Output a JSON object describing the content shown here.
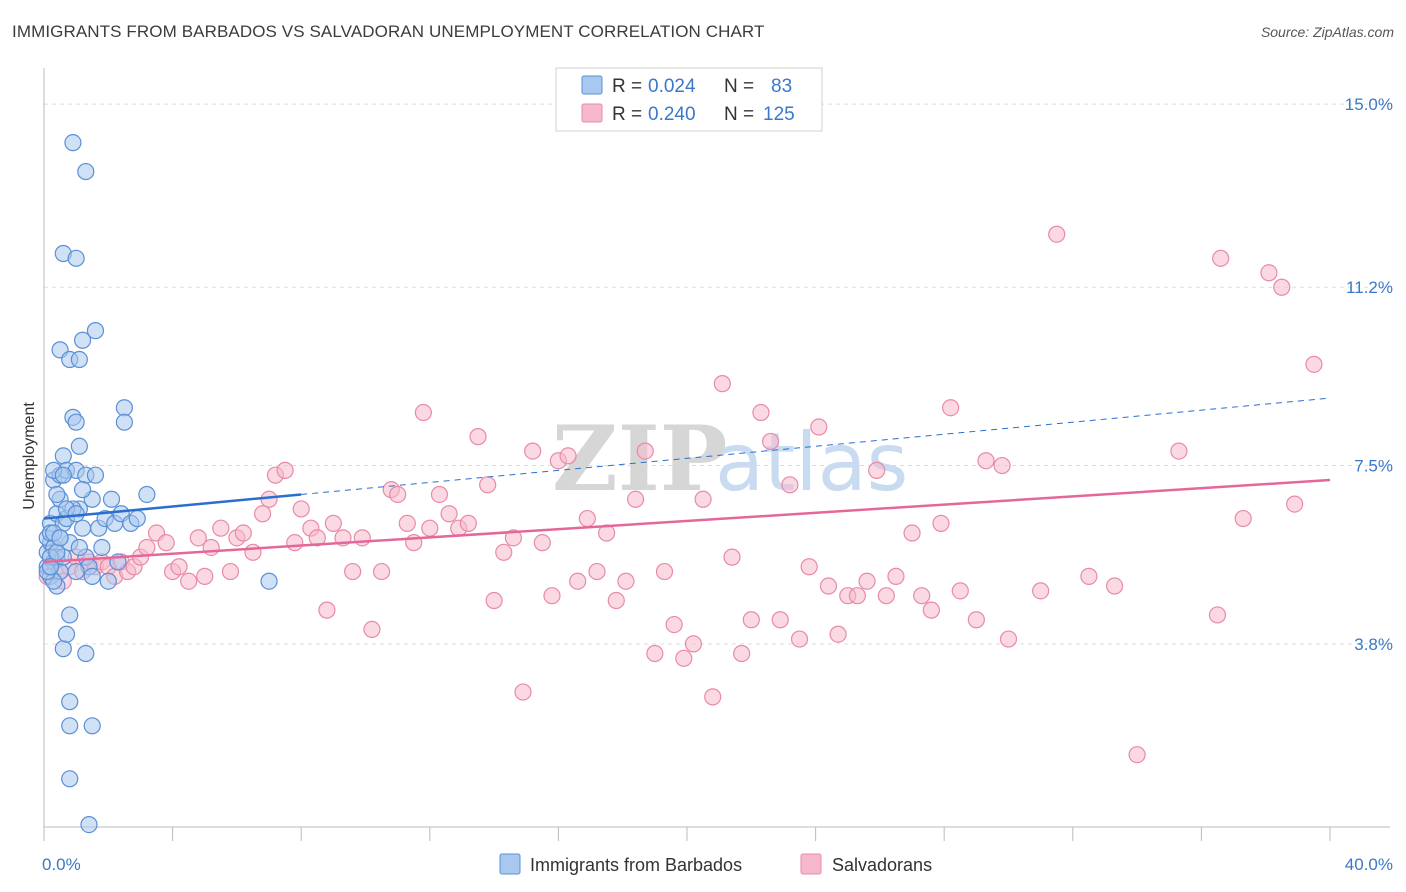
{
  "title": "IMMIGRANTS FROM BARBADOS VS SALVADORAN UNEMPLOYMENT CORRELATION CHART",
  "source": "Source: ZipAtlas.com",
  "watermark": {
    "zip": "ZIP",
    "atlas": "atlas"
  },
  "colors": {
    "blue_fill": "#a9c8ef",
    "blue_stroke": "#5b8fd6",
    "blue_line": "#2a6fd0",
    "pink_fill": "#f6b9cc",
    "pink_stroke": "#e88aa8",
    "pink_line": "#e5679a",
    "tick_text": "#3a78c8",
    "grid": "#dddddd"
  },
  "legend": {
    "rows": [
      {
        "r_label": "R =",
        "r_value": "0.024",
        "n_label": "N =",
        "n_value": "83"
      },
      {
        "r_label": "R =",
        "r_value": "0.240",
        "n_label": "N =",
        "n_value": "125"
      }
    ]
  },
  "bottom_legend": [
    "Immigrants from Barbados",
    "Salvadorans"
  ],
  "chart_data": {
    "type": "scatter",
    "title": "IMMIGRANTS FROM BARBADOS VS SALVADORAN UNEMPLOYMENT CORRELATION CHART",
    "xlabel": "",
    "ylabel": "Unemployment",
    "xlim": [
      0,
      40
    ],
    "ylim": [
      0,
      15.5
    ],
    "x_tick_labels": [
      "0.0%",
      "40.0%"
    ],
    "y_ticks": [
      3.8,
      7.5,
      11.2,
      15.0
    ],
    "y_tick_labels": [
      "3.8%",
      "7.5%",
      "11.2%",
      "15.0%"
    ],
    "grid": true,
    "series": [
      {
        "name": "Immigrants from Barbados",
        "r": 0.024,
        "n": 83,
        "trend": {
          "x0": 0,
          "y0": 6.4,
          "x1": 8,
          "y1": 6.9,
          "dashed_to_x": 40,
          "dashed_to_y": 8.9
        },
        "points": [
          [
            0.1,
            5.4
          ],
          [
            0.1,
            5.7
          ],
          [
            0.2,
            5.2
          ],
          [
            0.2,
            5.9
          ],
          [
            0.1,
            6.0
          ],
          [
            0.3,
            5.5
          ],
          [
            0.2,
            6.3
          ],
          [
            0.3,
            5.8
          ],
          [
            0.4,
            5.6
          ],
          [
            0.4,
            6.5
          ],
          [
            0.3,
            7.2
          ],
          [
            0.5,
            7.3
          ],
          [
            0.5,
            6.8
          ],
          [
            0.4,
            5.0
          ],
          [
            0.5,
            5.3
          ],
          [
            0.6,
            6.3
          ],
          [
            0.6,
            7.7
          ],
          [
            0.7,
            7.4
          ],
          [
            0.7,
            6.4
          ],
          [
            0.8,
            5.9
          ],
          [
            0.9,
            8.5
          ],
          [
            1.0,
            8.4
          ],
          [
            1.0,
            7.4
          ],
          [
            1.1,
            7.9
          ],
          [
            1.1,
            6.6
          ],
          [
            1.2,
            6.2
          ],
          [
            1.3,
            7.3
          ],
          [
            1.3,
            5.6
          ],
          [
            1.4,
            5.4
          ],
          [
            1.5,
            6.8
          ],
          [
            1.5,
            5.2
          ],
          [
            1.6,
            7.3
          ],
          [
            1.7,
            6.2
          ],
          [
            1.8,
            5.8
          ],
          [
            1.9,
            6.4
          ],
          [
            2.0,
            5.1
          ],
          [
            2.1,
            6.8
          ],
          [
            2.2,
            6.3
          ],
          [
            2.3,
            5.5
          ],
          [
            2.5,
            8.7
          ],
          [
            2.5,
            8.4
          ],
          [
            2.4,
            6.5
          ],
          [
            0.5,
            9.9
          ],
          [
            0.8,
            9.7
          ],
          [
            1.1,
            9.7
          ],
          [
            1.2,
            10.1
          ],
          [
            1.6,
            10.3
          ],
          [
            0.6,
            11.9
          ],
          [
            1.0,
            11.8
          ],
          [
            0.9,
            14.2
          ],
          [
            1.3,
            13.6
          ],
          [
            0.8,
            4.4
          ],
          [
            0.6,
            3.7
          ],
          [
            0.7,
            4.0
          ],
          [
            1.3,
            3.6
          ],
          [
            0.8,
            2.6
          ],
          [
            0.8,
            2.1
          ],
          [
            1.5,
            2.1
          ],
          [
            0.8,
            1.0
          ],
          [
            1.4,
            0.05
          ],
          [
            2.7,
            6.3
          ],
          [
            2.9,
            6.4
          ],
          [
            3.2,
            6.9
          ],
          [
            0.2,
            6.1
          ],
          [
            0.3,
            5.1
          ],
          [
            0.6,
            5.6
          ],
          [
            0.9,
            6.6
          ],
          [
            1.2,
            7.0
          ],
          [
            0.4,
            6.9
          ],
          [
            0.7,
            6.6
          ],
          [
            0.5,
            6.0
          ],
          [
            0.2,
            5.6
          ],
          [
            0.3,
            7.4
          ],
          [
            0.6,
            7.3
          ],
          [
            1.0,
            6.5
          ],
          [
            7.0,
            5.1
          ],
          [
            0.1,
            5.3
          ],
          [
            0.2,
            5.4
          ],
          [
            0.4,
            5.7
          ],
          [
            1.0,
            5.3
          ],
          [
            1.1,
            5.8
          ],
          [
            0.3,
            6.1
          ],
          [
            0.5,
            6.0
          ]
        ]
      },
      {
        "name": "Salvadorans",
        "r": 0.24,
        "n": 125,
        "trend": {
          "x0": 0,
          "y0": 5.5,
          "x1": 40,
          "y1": 7.2
        },
        "points": [
          [
            0.1,
            5.2
          ],
          [
            0.2,
            5.4
          ],
          [
            0.3,
            5.5
          ],
          [
            0.4,
            5.6
          ],
          [
            0.5,
            5.3
          ],
          [
            0.6,
            5.1
          ],
          [
            0.8,
            5.4
          ],
          [
            1.0,
            5.6
          ],
          [
            1.2,
            5.3
          ],
          [
            1.4,
            5.5
          ],
          [
            1.6,
            5.4
          ],
          [
            1.8,
            5.5
          ],
          [
            2.0,
            5.4
          ],
          [
            2.2,
            5.2
          ],
          [
            2.4,
            5.5
          ],
          [
            2.6,
            5.3
          ],
          [
            2.8,
            5.4
          ],
          [
            3.0,
            5.6
          ],
          [
            3.2,
            5.8
          ],
          [
            3.5,
            6.1
          ],
          [
            3.8,
            5.9
          ],
          [
            4.0,
            5.3
          ],
          [
            4.2,
            5.4
          ],
          [
            4.5,
            5.1
          ],
          [
            4.8,
            6.0
          ],
          [
            5.0,
            5.2
          ],
          [
            5.2,
            5.8
          ],
          [
            5.5,
            6.2
          ],
          [
            5.8,
            5.3
          ],
          [
            6.0,
            6.0
          ],
          [
            6.2,
            6.1
          ],
          [
            6.5,
            5.7
          ],
          [
            6.8,
            6.5
          ],
          [
            7.0,
            6.8
          ],
          [
            7.2,
            7.3
          ],
          [
            7.5,
            7.4
          ],
          [
            7.8,
            5.9
          ],
          [
            8.0,
            6.6
          ],
          [
            8.3,
            6.2
          ],
          [
            8.5,
            6.0
          ],
          [
            8.8,
            4.5
          ],
          [
            9.0,
            6.3
          ],
          [
            9.3,
            6.0
          ],
          [
            9.6,
            5.3
          ],
          [
            9.9,
            6.0
          ],
          [
            10.2,
            4.1
          ],
          [
            10.5,
            5.3
          ],
          [
            10.8,
            7.0
          ],
          [
            11.0,
            6.9
          ],
          [
            11.3,
            6.3
          ],
          [
            11.5,
            5.9
          ],
          [
            11.8,
            8.6
          ],
          [
            12.0,
            6.2
          ],
          [
            12.3,
            6.9
          ],
          [
            12.6,
            6.5
          ],
          [
            12.9,
            6.2
          ],
          [
            13.2,
            6.3
          ],
          [
            13.5,
            8.1
          ],
          [
            13.8,
            7.1
          ],
          [
            14.0,
            4.7
          ],
          [
            14.3,
            5.7
          ],
          [
            14.6,
            6.0
          ],
          [
            14.9,
            2.8
          ],
          [
            15.2,
            7.8
          ],
          [
            15.5,
            5.9
          ],
          [
            15.8,
            4.8
          ],
          [
            16.0,
            7.6
          ],
          [
            16.3,
            7.7
          ],
          [
            16.6,
            5.1
          ],
          [
            16.9,
            6.4
          ],
          [
            17.2,
            5.3
          ],
          [
            17.5,
            6.1
          ],
          [
            17.8,
            4.7
          ],
          [
            18.1,
            5.1
          ],
          [
            18.4,
            6.8
          ],
          [
            18.7,
            7.8
          ],
          [
            19.0,
            3.6
          ],
          [
            19.3,
            5.3
          ],
          [
            19.6,
            4.2
          ],
          [
            19.9,
            3.5
          ],
          [
            20.2,
            3.8
          ],
          [
            20.5,
            6.8
          ],
          [
            20.8,
            2.7
          ],
          [
            21.1,
            9.2
          ],
          [
            21.4,
            5.6
          ],
          [
            21.7,
            3.6
          ],
          [
            22.0,
            4.3
          ],
          [
            22.3,
            8.6
          ],
          [
            22.6,
            8.0
          ],
          [
            22.9,
            4.3
          ],
          [
            23.2,
            7.1
          ],
          [
            23.5,
            3.9
          ],
          [
            23.8,
            5.4
          ],
          [
            24.1,
            8.3
          ],
          [
            24.4,
            5.0
          ],
          [
            24.7,
            4.0
          ],
          [
            25.0,
            4.8
          ],
          [
            25.3,
            4.8
          ],
          [
            25.6,
            5.1
          ],
          [
            25.9,
            7.4
          ],
          [
            26.2,
            4.8
          ],
          [
            26.5,
            5.2
          ],
          [
            27.0,
            6.1
          ],
          [
            27.3,
            4.8
          ],
          [
            27.6,
            4.5
          ],
          [
            27.9,
            6.3
          ],
          [
            28.2,
            8.7
          ],
          [
            28.5,
            4.9
          ],
          [
            29.0,
            4.3
          ],
          [
            29.3,
            7.6
          ],
          [
            29.8,
            7.5
          ],
          [
            30.0,
            3.9
          ],
          [
            31.0,
            4.9
          ],
          [
            31.5,
            12.3
          ],
          [
            32.5,
            5.2
          ],
          [
            33.3,
            5.0
          ],
          [
            34.0,
            1.5
          ],
          [
            35.3,
            7.8
          ],
          [
            36.5,
            4.4
          ],
          [
            36.6,
            11.8
          ],
          [
            37.3,
            6.4
          ],
          [
            38.1,
            11.5
          ],
          [
            38.5,
            11.2
          ],
          [
            38.9,
            6.7
          ],
          [
            39.5,
            9.6
          ]
        ]
      }
    ]
  }
}
